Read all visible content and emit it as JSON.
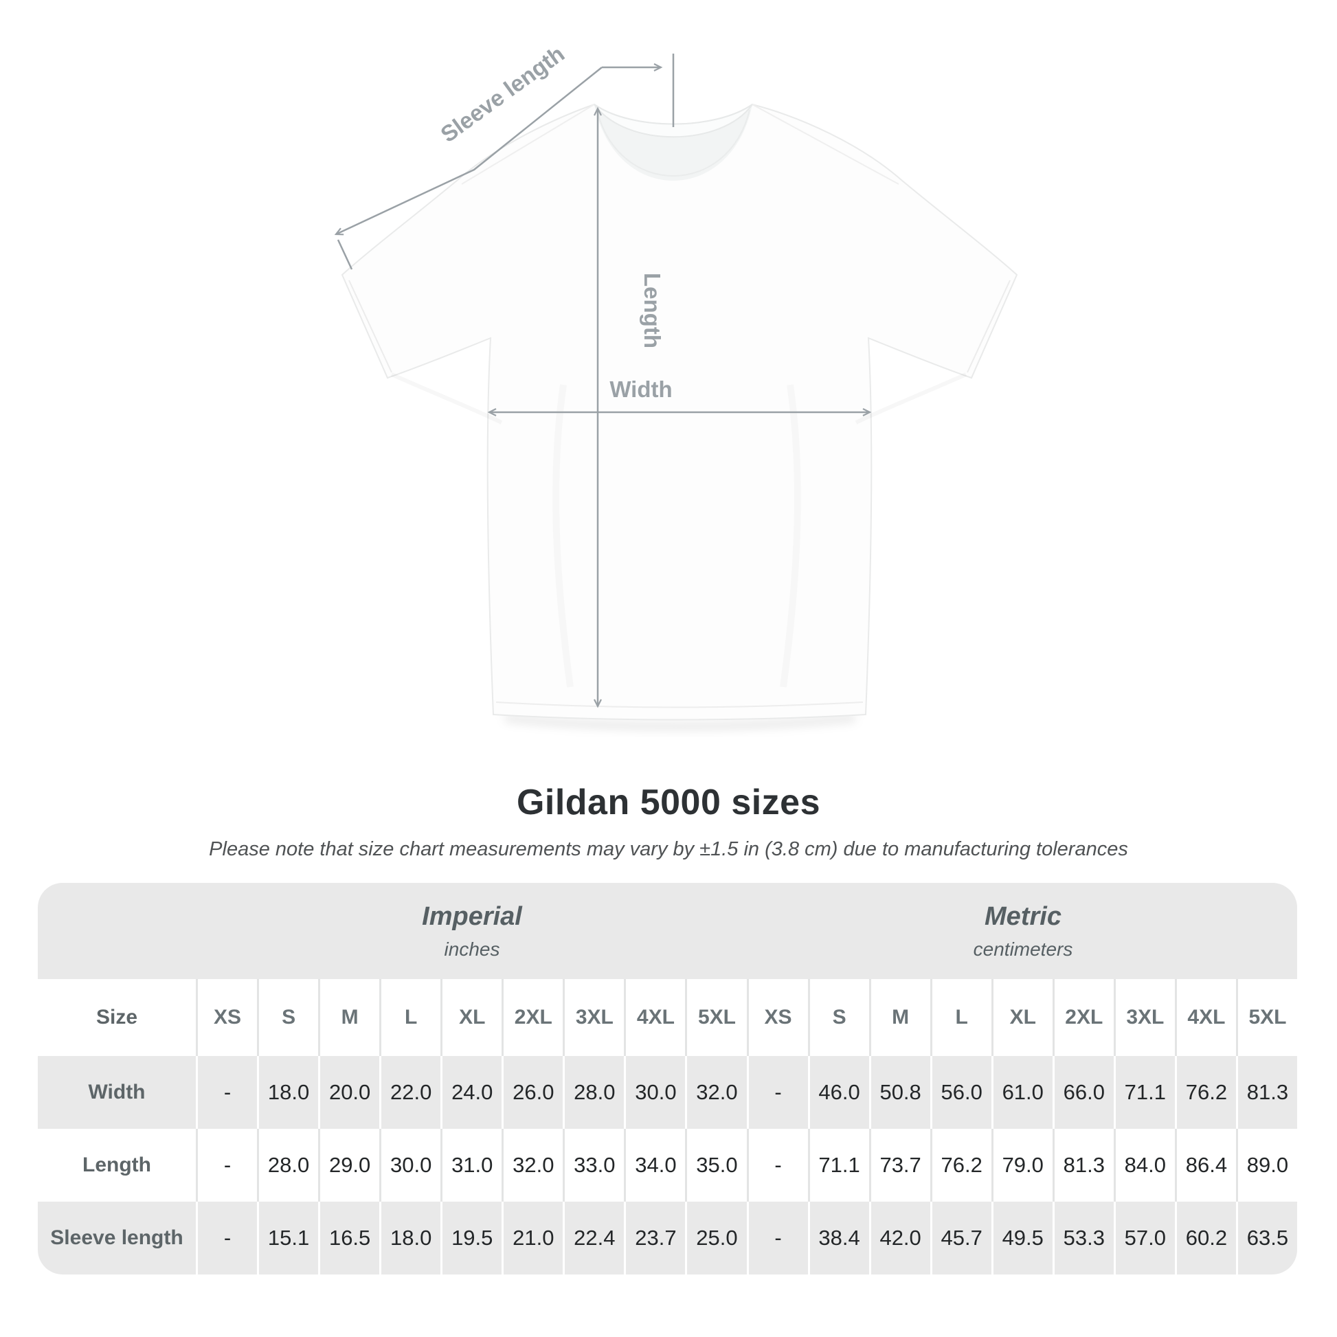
{
  "page": {
    "background": "#ffffff"
  },
  "title": "Gildan 5000 sizes",
  "subtitle": "Please note that size chart measurements may vary by ±1.5 in (3.8 cm) due to manufacturing tolerances",
  "diagram": {
    "sleeve_length_label": "Sleeve length",
    "length_label": "Length",
    "width_label": "Width",
    "line_color": "#9aa1a6",
    "label_color": "#9aa1a6"
  },
  "size_table": {
    "corner_label": "Size",
    "sections": [
      {
        "name": "Imperial",
        "unit": "inches",
        "sizes": [
          "XS",
          "S",
          "M",
          "L",
          "XL",
          "2XL",
          "3XL",
          "4XL",
          "5XL"
        ]
      },
      {
        "name": "Metric",
        "unit": "centimeters",
        "sizes": [
          "XS",
          "S",
          "M",
          "L",
          "XL",
          "2XL",
          "3XL",
          "4XL",
          "5XL"
        ]
      }
    ],
    "rows": [
      {
        "label": "Width",
        "imperial": [
          "-",
          "18.0",
          "20.0",
          "22.0",
          "24.0",
          "26.0",
          "28.0",
          "30.0",
          "32.0"
        ],
        "metric": [
          "-",
          "46.0",
          "50.8",
          "56.0",
          "61.0",
          "66.0",
          "71.1",
          "76.2",
          "81.3"
        ]
      },
      {
        "label": "Length",
        "imperial": [
          "-",
          "28.0",
          "29.0",
          "30.0",
          "31.0",
          "32.0",
          "33.0",
          "34.0",
          "35.0"
        ],
        "metric": [
          "-",
          "71.1",
          "73.7",
          "76.2",
          "79.0",
          "81.3",
          "84.0",
          "86.4",
          "89.0"
        ]
      },
      {
        "label": "Sleeve length",
        "imperial": [
          "-",
          "15.1",
          "16.5",
          "18.0",
          "19.5",
          "21.0",
          "22.4",
          "23.7",
          "25.0"
        ],
        "metric": [
          "-",
          "38.4",
          "42.0",
          "45.7",
          "49.5",
          "53.3",
          "57.0",
          "60.2",
          "63.5"
        ]
      }
    ],
    "colors": {
      "band_bg": "#e9e9e9",
      "stripe_bg": "#e9e9e9",
      "white_bg": "#ffffff",
      "divider_on_white": "#e3e4e4",
      "divider_on_gray": "#ffffff",
      "header_text": "#6a7377",
      "label_text": "#5d6568",
      "value_text": "#232628"
    }
  }
}
